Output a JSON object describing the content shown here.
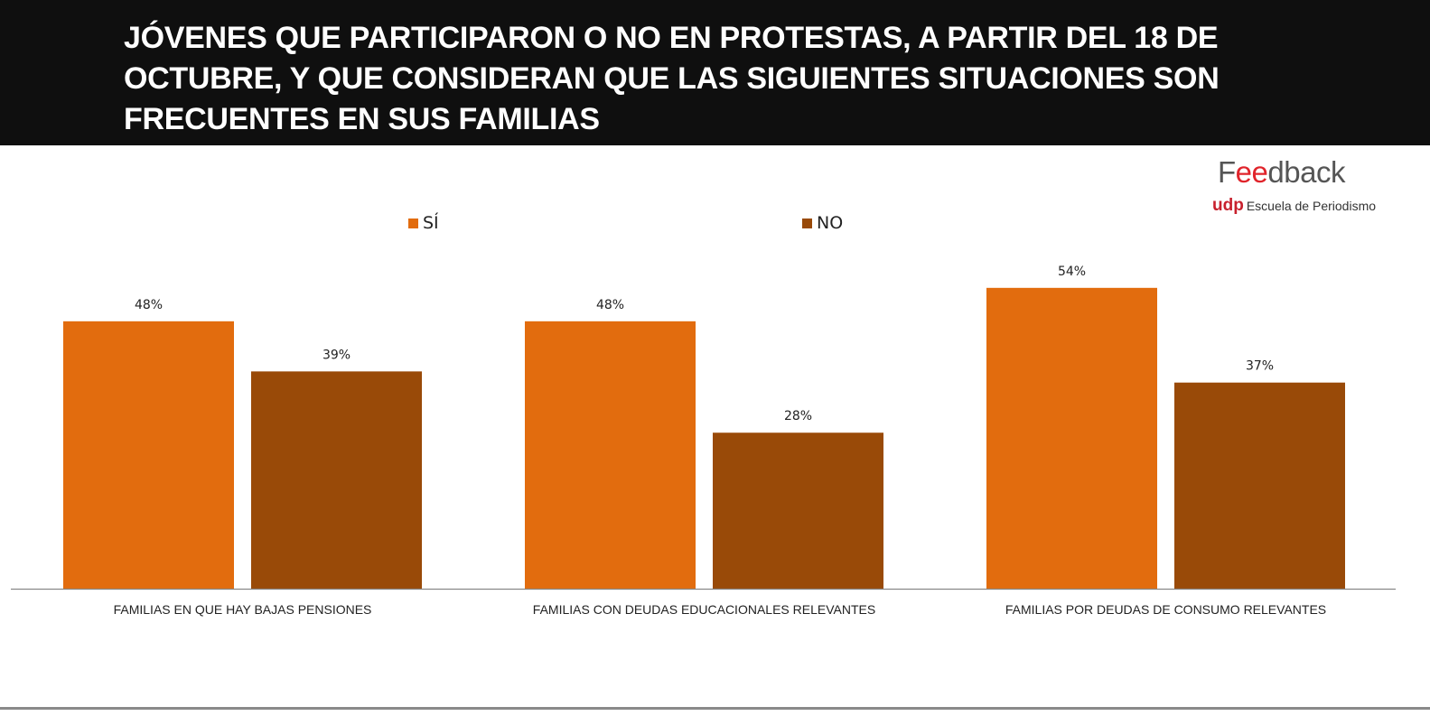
{
  "header": {
    "title": "JÓVENES QUE PARTICIPARON O NO EN PROTESTAS, A PARTIR DEL 18 DE OCTUBRE, Y QUE CONSIDERAN QUE LAS SIGUIENTES SITUACIONES SON FRECUENTES EN SUS FAMILIAS"
  },
  "logo": {
    "brand_prefix": "F",
    "brand_highlight": "ee",
    "brand_suffix": "dback",
    "org_short": "udp",
    "org_name": "Escuela de Periodismo"
  },
  "colors": {
    "si": "#e26c0e",
    "no": "#994a08",
    "header_bg": "#0f0f0f",
    "brand_red": "#e0242b"
  },
  "chart_data": {
    "type": "bar",
    "title": "JÓVENES QUE PARTICIPARON O NO EN PROTESTAS, A PARTIR DEL 18 DE OCTUBRE, Y QUE CONSIDERAN QUE LAS SIGUIENTES SITUACIONES SON FRECUENTES EN SUS FAMILIAS",
    "categories": [
      "FAMILIAS EN QUE HAY BAJAS PENSIONES",
      "FAMILIAS CON DEUDAS EDUCACIONALES RELEVANTES",
      "FAMILIAS POR DEUDAS DE CONSUMO RELEVANTES"
    ],
    "series": [
      {
        "name": "SÍ",
        "values": [
          48,
          48,
          54
        ],
        "labels": [
          "48%",
          "48%",
          "54%"
        ]
      },
      {
        "name": "NO",
        "values": [
          39,
          28,
          37
        ],
        "labels": [
          "39%",
          "28%",
          "37%"
        ]
      }
    ],
    "xlabel": "",
    "ylabel": "",
    "ylim": [
      0,
      54
    ],
    "unit": "%",
    "grid": false,
    "legend_position": "top-center"
  }
}
